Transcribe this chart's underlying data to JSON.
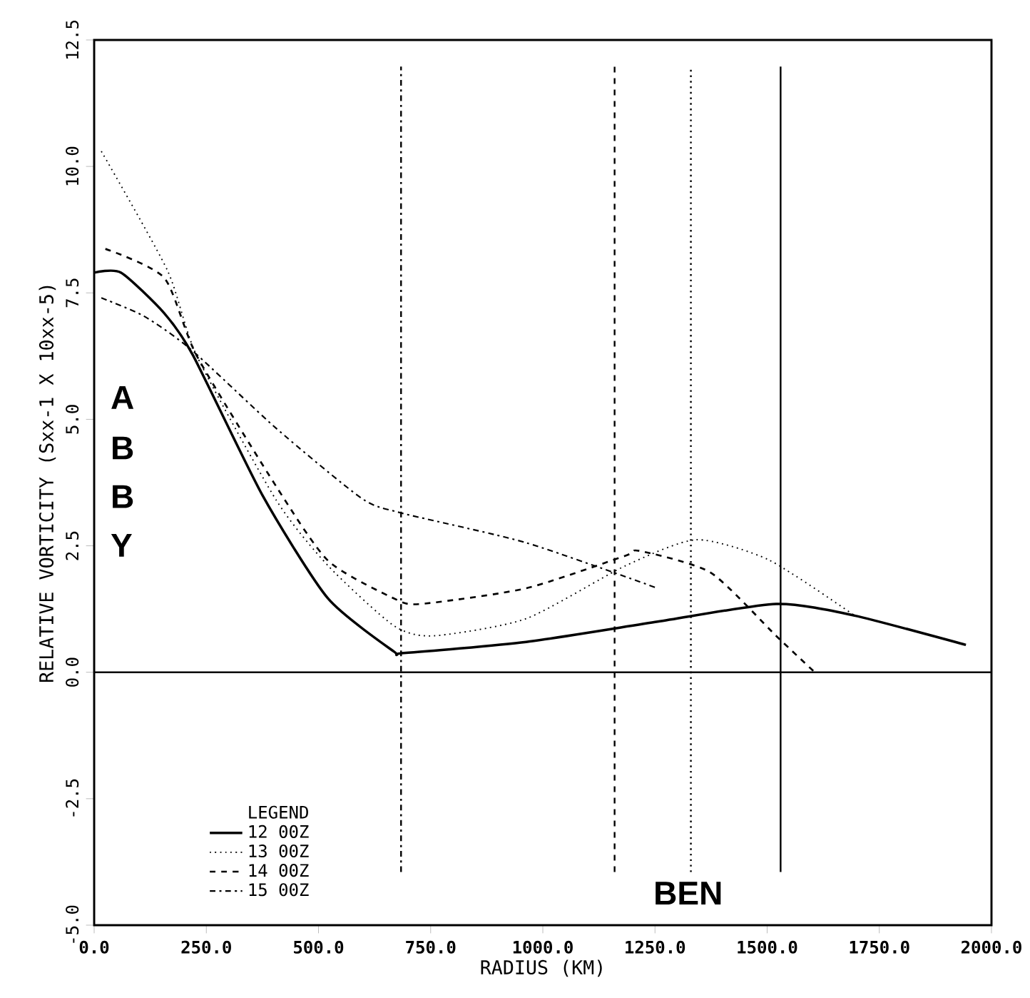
{
  "chart_data": {
    "type": "line",
    "xlabel": "RADIUS (KM)",
    "ylabel": "RELATIVE VORTICITY (Sxx-1 X 10xx-5)",
    "legend_title": "LEGEND",
    "annotations": [
      "A",
      "B",
      "B",
      "Y",
      "BEN"
    ],
    "series": [
      {
        "name": "12 00Z",
        "color": "#000000",
        "line_style": "solid",
        "x": [
          0,
          60,
          156,
          220,
          375,
          521,
          668,
          690,
          963,
          1256,
          1520,
          1695,
          1943
        ],
        "values": [
          7.9,
          7.9,
          7.1,
          6.27,
          3.5,
          1.46,
          0.41,
          0.38,
          0.6,
          1.0,
          1.35,
          1.12,
          0.54
        ]
      },
      {
        "name": "13 00Z",
        "color": "#000000",
        "line_style": "dotted",
        "x": [
          16,
          163,
          229,
          406,
          522,
          668,
          757,
          963,
          1183,
          1342,
          1504,
          1695
        ],
        "values": [
          10.3,
          7.95,
          6.25,
          3.4,
          2.1,
          0.92,
          0.72,
          1.06,
          2.1,
          2.62,
          2.22,
          1.12
        ]
      },
      {
        "name": "14 00Z",
        "color": "#000000",
        "line_style": "dashed",
        "x": [
          25,
          156,
          229,
          406,
          522,
          668,
          728,
          963,
          1183,
          1215,
          1374,
          1520,
          1606
        ],
        "values": [
          8.37,
          7.8,
          6.25,
          3.67,
          2.2,
          1.46,
          1.35,
          1.66,
          2.3,
          2.4,
          1.97,
          0.72,
          0.0
        ]
      },
      {
        "name": "15 00Z",
        "color": "#000000",
        "line_style": "dashdot",
        "x": [
          16,
          111,
          216,
          406,
          596,
          684,
          963,
          1256
        ],
        "values": [
          7.4,
          7.04,
          6.38,
          4.82,
          3.44,
          3.15,
          2.56,
          1.66
        ]
      }
    ],
    "ref_lines": [
      {
        "axis": "y",
        "value": 0,
        "color": "#000000",
        "line_style": "solid"
      },
      {
        "axis": "x",
        "value": 684,
        "color": "#000000",
        "line_style": "dashdot"
      },
      {
        "axis": "x",
        "value": 1160,
        "color": "#000000",
        "line_style": "dashed"
      },
      {
        "axis": "x",
        "value": 1330,
        "color": "#000000",
        "line_style": "dotted"
      },
      {
        "axis": "x",
        "value": 1530,
        "color": "#000000",
        "line_style": "solid"
      }
    ],
    "xlim": [
      0,
      2000
    ],
    "ylim": [
      -5,
      12.5
    ],
    "xticks": [
      {
        "value": 0,
        "label": "0.0"
      },
      {
        "value": 250,
        "label": "250.0"
      },
      {
        "value": 500,
        "label": "500.0"
      },
      {
        "value": 750,
        "label": "750.0"
      },
      {
        "value": 1000,
        "label": "1000.0"
      },
      {
        "value": 1250,
        "label": "1250.0"
      },
      {
        "value": 1500,
        "label": "1500.0"
      },
      {
        "value": 1750,
        "label": "1750.0"
      },
      {
        "value": 2000,
        "label": "2000.0"
      }
    ],
    "yticks": [
      {
        "value": -5,
        "label": "-5.0"
      },
      {
        "value": -2.5,
        "label": "-2.5"
      },
      {
        "value": 0,
        "label": "0.0"
      },
      {
        "value": 2.5,
        "label": "2.5"
      },
      {
        "value": 5,
        "label": "5.0"
      },
      {
        "value": 7.5,
        "label": "7.5"
      },
      {
        "value": 10,
        "label": "10.0"
      },
      {
        "value": 12.5,
        "label": "12.5"
      }
    ],
    "grid": false,
    "legend": "bottom left",
    "marker": "none"
  }
}
